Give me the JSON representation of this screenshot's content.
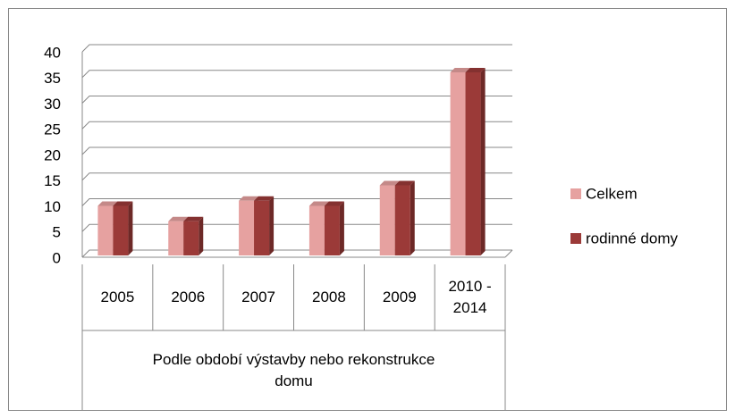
{
  "chart_data": {
    "type": "bar3d",
    "categories": [
      "2005",
      "2006",
      "2007",
      "2008",
      "2009",
      "2010 - 2014"
    ],
    "x_group_label": "Podle období výstavby nebo rekonstrukce domu",
    "series": [
      {
        "name": "Celkem",
        "color": "#e6a1a0",
        "values": [
          10,
          7,
          11,
          10,
          14,
          36
        ]
      },
      {
        "name": "rodinné domy",
        "color": "#9b3a38",
        "values": [
          10,
          7,
          11,
          10,
          14,
          36
        ]
      }
    ],
    "ylim": [
      0,
      40
    ],
    "yticks": [
      0,
      5,
      10,
      15,
      20,
      25,
      30,
      35,
      40
    ],
    "grid": true,
    "legend": "right"
  }
}
